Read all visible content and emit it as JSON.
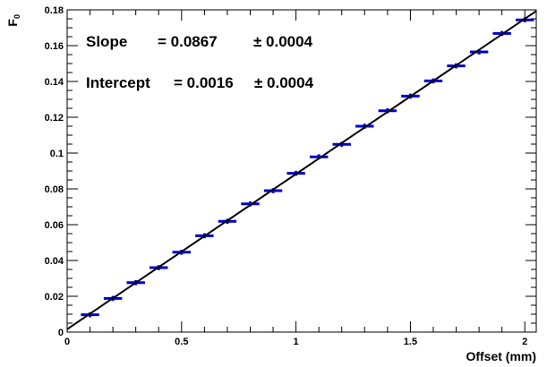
{
  "chart_data": {
    "type": "scatter",
    "xlabel": "Offset (mm)",
    "ylabel_main": "F",
    "ylabel_sub": "0",
    "xlim": [
      0,
      2.05
    ],
    "ylim": [
      0,
      0.18
    ],
    "x_ticks": [
      0,
      0.5,
      1,
      1.5,
      2
    ],
    "x_tick_labels": [
      "0",
      "0.5",
      "1",
      "1.5",
      "2"
    ],
    "y_ticks": [
      0,
      0.02,
      0.04,
      0.06,
      0.08,
      0.1,
      0.12,
      0.14,
      0.16,
      0.18
    ],
    "y_tick_labels": [
      "0",
      "0.02",
      "0.04",
      "0.06",
      "0.08",
      "0.1",
      "0.12",
      "0.14",
      "0.16",
      "0.18"
    ],
    "grid": false,
    "marker_color": "#0000cc",
    "fit_line_color": "#000000",
    "x_error": 0.04,
    "y_error": 0.0004,
    "fit": {
      "slope": 0.0867,
      "intercept": 0.0016
    },
    "annotations": {
      "slope_label": "Slope",
      "slope_value": "= 0.0867",
      "slope_error": "± 0.0004",
      "intercept_label": "Intercept",
      "intercept_value": "= 0.0016",
      "intercept_error": "± 0.0004"
    },
    "series": [
      {
        "x": [
          0.1,
          0.2,
          0.3,
          0.4,
          0.5,
          0.6,
          0.7,
          0.8,
          0.9,
          1.0,
          1.1,
          1.2,
          1.3,
          1.4,
          1.5,
          1.6,
          1.7,
          1.8,
          1.9,
          2.0
        ],
        "values": [
          0.0097,
          0.0188,
          0.0276,
          0.036,
          0.0446,
          0.0538,
          0.0619,
          0.0716,
          0.079,
          0.0887,
          0.0979,
          0.1049,
          0.115,
          0.1236,
          0.1318,
          0.1403,
          0.1487,
          0.1565,
          0.1668,
          0.1744
        ]
      }
    ]
  }
}
